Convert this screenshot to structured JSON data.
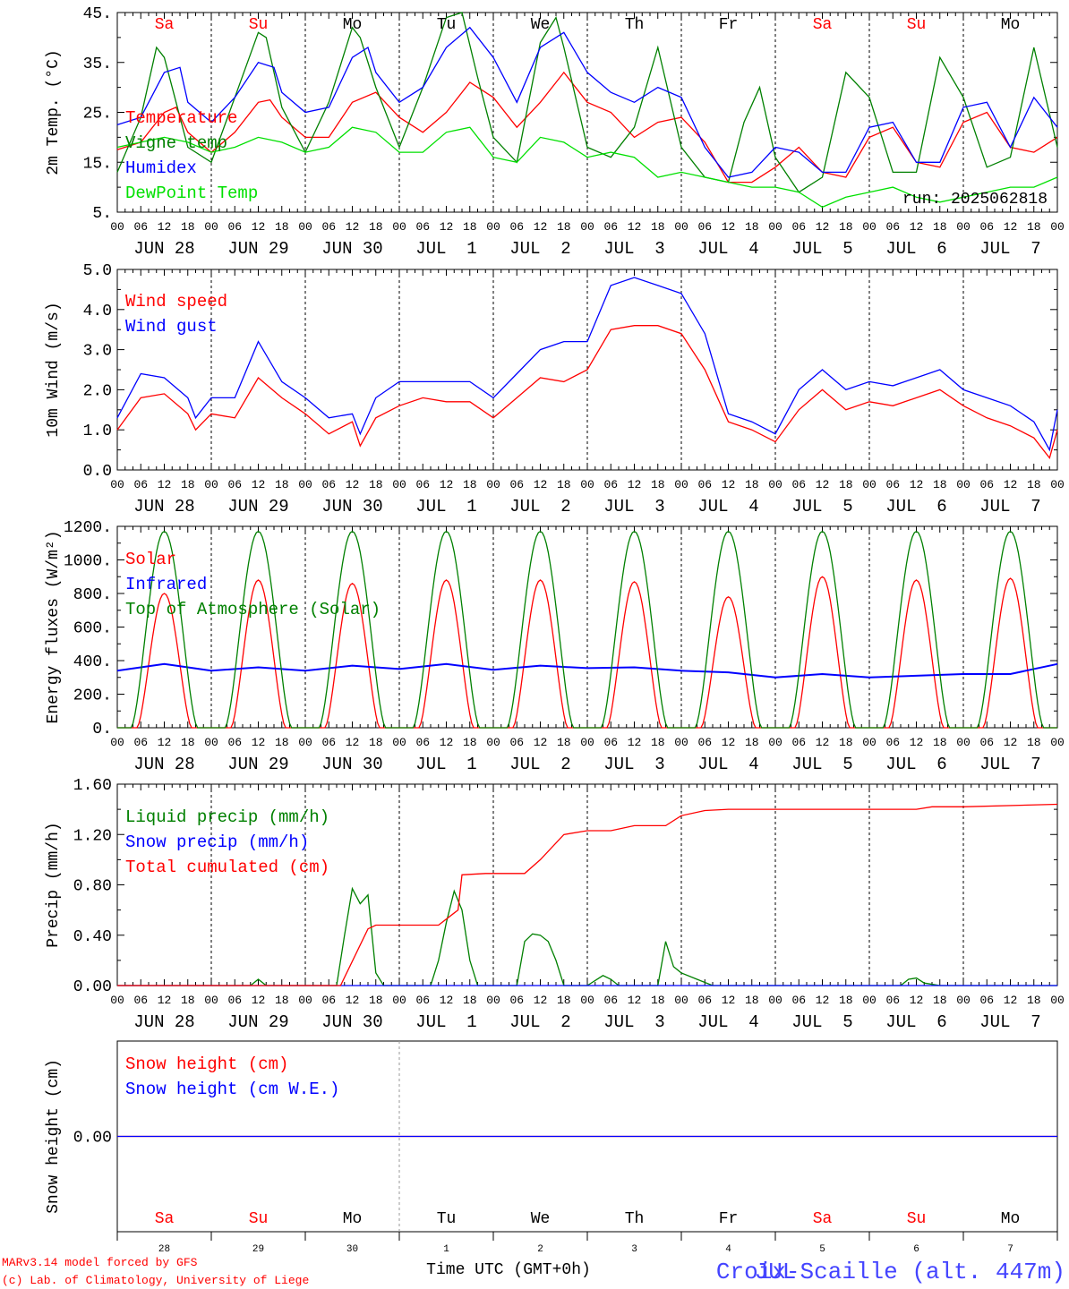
{
  "run_label": "run: 2025062818",
  "footer": {
    "model_line": "MARv3.14 model forced by GFS",
    "credit_line": "(c) Lab. of Climatology, University of Liege",
    "xlabel": "Time UTC (GMT+0h)",
    "month_label": "JUL",
    "station": "Croix-Scaille (alt. 447m)"
  },
  "days": [
    {
      "abbr": "Sa",
      "weekend": true,
      "label": "JUN 28",
      "num": "28"
    },
    {
      "abbr": "Su",
      "weekend": true,
      "label": "JUN 29",
      "num": "29"
    },
    {
      "abbr": "Mo",
      "weekend": false,
      "label": "JUN 30",
      "num": "30"
    },
    {
      "abbr": "Tu",
      "weekend": false,
      "label": "JUL  1",
      "num": "1"
    },
    {
      "abbr": "We",
      "weekend": false,
      "label": "JUL  2",
      "num": "2"
    },
    {
      "abbr": "Th",
      "weekend": false,
      "label": "JUL  3",
      "num": "3"
    },
    {
      "abbr": "Fr",
      "weekend": false,
      "label": "JUL  4",
      "num": "4"
    },
    {
      "abbr": "Sa",
      "weekend": true,
      "label": "JUL  5",
      "num": "5"
    },
    {
      "abbr": "Su",
      "weekend": true,
      "label": "JUL  6",
      "num": "6"
    },
    {
      "abbr": "Mo",
      "weekend": false,
      "label": "JUL  7",
      "num": "7"
    }
  ],
  "hour_ticks": [
    "00",
    "06",
    "12",
    "18"
  ],
  "colors": {
    "red": "#ff0000",
    "blue": "#0000ff",
    "green": "#008000",
    "lightgreen": "#00e000",
    "weekend": "#ff0000",
    "weekday": "#000000",
    "station": "#4444ff"
  },
  "chart_data": [
    {
      "id": "temp",
      "type": "line",
      "ylabel": "2m Temp. (°C)",
      "ylim": [
        5,
        45
      ],
      "yticks": [
        "5.",
        "15.",
        "25.",
        "35.",
        "45."
      ],
      "ytick_values": [
        5,
        15,
        25,
        35,
        45
      ],
      "x_unit": "hours since JUN 28 00 UTC",
      "series": [
        {
          "name": "Temperature",
          "color": "red",
          "x": [
            0,
            6,
            12,
            15,
            18,
            24,
            30,
            36,
            39,
            42,
            48,
            54,
            60,
            66,
            72,
            78,
            84,
            90,
            96,
            102,
            108,
            114,
            120,
            126,
            132,
            138,
            144,
            150,
            156,
            162,
            168,
            174,
            180,
            186,
            192,
            198,
            204,
            210,
            216,
            222,
            228,
            234,
            240
          ],
          "y": [
            17.5,
            19,
            25,
            26,
            21,
            17,
            21,
            27,
            27.5,
            24,
            20,
            20,
            27,
            29,
            24,
            21,
            25,
            31,
            28,
            22,
            27,
            33,
            27,
            25,
            20,
            23,
            24,
            19,
            11,
            11,
            14,
            18,
            13,
            12,
            20,
            22,
            15,
            14,
            23,
            25,
            18,
            17,
            20
          ]
        },
        {
          "name": "Vigne temp",
          "color": "green",
          "x": [
            0,
            6,
            10,
            12,
            14,
            18,
            24,
            30,
            36,
            38,
            42,
            48,
            54,
            60,
            62,
            66,
            72,
            78,
            84,
            88,
            92,
            96,
            102,
            108,
            112,
            114,
            120,
            126,
            132,
            138,
            144,
            150,
            156,
            160,
            164,
            168,
            174,
            180,
            186,
            192,
            198,
            204,
            210,
            216,
            222,
            228,
            234,
            240
          ],
          "y": [
            13,
            24,
            38,
            36,
            30,
            18,
            15,
            28,
            41,
            40,
            26,
            17,
            27,
            42,
            40,
            30,
            18,
            30,
            44,
            45,
            32,
            20,
            15,
            39,
            44,
            38,
            18,
            16,
            22,
            38,
            18,
            12,
            11,
            23,
            30,
            16,
            9,
            12,
            33,
            28,
            13,
            13,
            36,
            28,
            14,
            16,
            38,
            18
          ]
        },
        {
          "name": "Humidex",
          "color": "blue",
          "x": [
            0,
            6,
            12,
            16,
            18,
            24,
            30,
            36,
            40,
            42,
            48,
            54,
            60,
            64,
            66,
            72,
            78,
            84,
            90,
            96,
            102,
            108,
            114,
            120,
            126,
            132,
            138,
            144,
            150,
            156,
            162,
            168,
            174,
            180,
            186,
            192,
            198,
            204,
            210,
            216,
            222,
            228,
            234,
            240
          ],
          "y": [
            22.5,
            24,
            33,
            34,
            27,
            23,
            28,
            35,
            34,
            29,
            25,
            26,
            36,
            38,
            33,
            27,
            30,
            38,
            42,
            36,
            27,
            38,
            41,
            33,
            29,
            27,
            30,
            28,
            18,
            12,
            13,
            18,
            17,
            13,
            13,
            22,
            23,
            15,
            15,
            26,
            27,
            18,
            28,
            22
          ]
        },
        {
          "name": "DewPoint Temp",
          "color": "lightgreen",
          "x": [
            0,
            6,
            12,
            18,
            24,
            30,
            36,
            42,
            48,
            54,
            60,
            66,
            72,
            78,
            84,
            90,
            96,
            102,
            108,
            114,
            120,
            126,
            132,
            138,
            144,
            150,
            156,
            162,
            168,
            174,
            180,
            186,
            192,
            198,
            204,
            210,
            216,
            222,
            228,
            234,
            240
          ],
          "y": [
            18,
            19,
            20,
            19,
            17,
            18,
            20,
            19,
            17,
            18,
            22,
            21,
            17,
            17,
            21,
            22,
            16,
            15,
            20,
            19,
            16,
            17,
            16,
            12,
            13,
            12,
            11,
            10,
            10,
            9,
            6,
            8,
            9,
            10,
            8,
            7,
            8,
            9,
            10,
            10,
            12
          ]
        }
      ]
    },
    {
      "id": "wind",
      "type": "line",
      "ylabel": "10m Wind (m/s)",
      "ylim": [
        0,
        5
      ],
      "yticks": [
        "0.0",
        "1.0",
        "2.0",
        "3.0",
        "4.0",
        "5.0"
      ],
      "ytick_values": [
        0,
        1,
        2,
        3,
        4,
        5
      ],
      "x_unit": "hours since JUN 28 00 UTC",
      "series": [
        {
          "name": "Wind speed",
          "color": "red",
          "x": [
            0,
            6,
            12,
            18,
            20,
            24,
            30,
            36,
            42,
            48,
            54,
            60,
            62,
            66,
            72,
            78,
            84,
            90,
            96,
            102,
            108,
            114,
            120,
            126,
            132,
            138,
            144,
            150,
            156,
            162,
            168,
            174,
            180,
            186,
            192,
            198,
            204,
            210,
            216,
            222,
            228,
            234,
            238,
            240
          ],
          "y": [
            1.0,
            1.8,
            1.9,
            1.4,
            1.0,
            1.4,
            1.3,
            2.3,
            1.8,
            1.4,
            0.9,
            1.2,
            0.6,
            1.3,
            1.6,
            1.8,
            1.7,
            1.7,
            1.3,
            1.8,
            2.3,
            2.2,
            2.5,
            3.5,
            3.6,
            3.6,
            3.4,
            2.5,
            1.2,
            1.0,
            0.7,
            1.5,
            2.0,
            1.5,
            1.7,
            1.6,
            1.8,
            2.0,
            1.6,
            1.3,
            1.1,
            0.8,
            0.3,
            1.0
          ]
        },
        {
          "name": "Wind gust",
          "color": "blue",
          "x": [
            0,
            6,
            12,
            18,
            20,
            24,
            30,
            36,
            42,
            48,
            54,
            60,
            62,
            66,
            72,
            78,
            84,
            90,
            96,
            102,
            108,
            114,
            120,
            126,
            132,
            138,
            144,
            150,
            156,
            162,
            168,
            174,
            180,
            186,
            192,
            198,
            204,
            210,
            216,
            222,
            228,
            234,
            238,
            240
          ],
          "y": [
            1.3,
            2.4,
            2.3,
            1.8,
            1.3,
            1.8,
            1.8,
            3.2,
            2.2,
            1.8,
            1.3,
            1.4,
            0.9,
            1.8,
            2.2,
            2.2,
            2.2,
            2.2,
            1.8,
            2.4,
            3.0,
            3.2,
            3.2,
            4.6,
            4.8,
            4.6,
            4.4,
            3.4,
            1.4,
            1.2,
            0.9,
            2.0,
            2.5,
            2.0,
            2.2,
            2.1,
            2.3,
            2.5,
            2.0,
            1.8,
            1.6,
            1.2,
            0.5,
            1.5
          ]
        }
      ]
    },
    {
      "id": "energy",
      "type": "line",
      "ylabel": "Energy fluxes (W/m²)",
      "ylim": [
        0,
        1200
      ],
      "yticks": [
        "0.",
        "200.",
        "400.",
        "600.",
        "800.",
        "1000.",
        "1200."
      ],
      "ytick_values": [
        0,
        200,
        400,
        600,
        800,
        1000,
        1200
      ],
      "x_unit": "hours since JUN 28 00 UTC",
      "series": [
        {
          "name": "Solar",
          "color": "red",
          "daily_peak": [
            800,
            880,
            860,
            880,
            880,
            870,
            780,
            900,
            880,
            890
          ]
        },
        {
          "name": "Infrared",
          "color": "blue",
          "x": [
            0,
            12,
            18,
            24,
            36,
            48,
            60,
            72,
            84,
            96,
            108,
            120,
            132,
            144,
            156,
            168,
            180,
            192,
            204,
            216,
            228,
            240
          ],
          "y": [
            340,
            380,
            360,
            340,
            360,
            340,
            370,
            350,
            380,
            345,
            370,
            355,
            360,
            340,
            330,
            300,
            320,
            300,
            310,
            320,
            320,
            380
          ]
        },
        {
          "name": "Top of Atmosphere (Solar)",
          "color": "green",
          "daily_peak": [
            1170,
            1170,
            1170,
            1170,
            1170,
            1170,
            1170,
            1170,
            1170,
            1170
          ]
        }
      ]
    },
    {
      "id": "precip",
      "type": "line",
      "ylabel": "Precip (mm/h)",
      "ylim": [
        0,
        1.6
      ],
      "yticks": [
        "0.00",
        "0.40",
        "0.80",
        "1.20",
        "1.60"
      ],
      "ytick_values": [
        0,
        0.4,
        0.8,
        1.2,
        1.6
      ],
      "x_unit": "hours since JUN 28 00 UTC",
      "series": [
        {
          "name": "Liquid precip (mm/h)",
          "color": "green",
          "x": [
            0,
            34,
            36,
            38,
            48,
            56,
            58,
            60,
            62,
            64,
            66,
            68,
            72,
            80,
            82,
            84,
            86,
            88,
            90,
            92,
            96,
            102,
            104,
            106,
            108,
            110,
            112,
            114,
            116,
            120,
            124,
            126,
            128,
            132,
            138,
            140,
            142,
            144,
            148,
            152,
            156,
            200,
            202,
            204,
            206,
            210,
            240
          ],
          "y": [
            0,
            0,
            0.05,
            0,
            0,
            0,
            0.4,
            0.77,
            0.65,
            0.72,
            0.1,
            0,
            0,
            0,
            0.2,
            0.5,
            0.75,
            0.6,
            0.2,
            0,
            0,
            0,
            0.35,
            0.41,
            0.4,
            0.35,
            0.2,
            0,
            0,
            0,
            0.08,
            0.05,
            0,
            0,
            0,
            0.35,
            0.15,
            0.1,
            0.05,
            0,
            0,
            0,
            0.05,
            0.06,
            0.02,
            0,
            0
          ]
        },
        {
          "name": "Snow precip (mm/h)",
          "color": "blue",
          "x": [
            0,
            240
          ],
          "y": [
            0,
            0
          ]
        },
        {
          "name": "Total cumulated (cm)",
          "color": "red",
          "x": [
            0,
            34,
            57,
            64,
            66,
            82,
            87,
            88,
            94,
            104,
            108,
            114,
            120,
            126,
            132,
            140,
            144,
            150,
            156,
            204,
            208,
            216,
            240
          ],
          "y": [
            0,
            0,
            0,
            0.45,
            0.48,
            0.48,
            0.6,
            0.88,
            0.89,
            0.89,
            1.0,
            1.2,
            1.23,
            1.23,
            1.27,
            1.27,
            1.35,
            1.39,
            1.4,
            1.4,
            1.42,
            1.42,
            1.44
          ]
        }
      ]
    },
    {
      "id": "snow",
      "type": "line",
      "ylabel": "Snow height (cm)",
      "ylim": [
        -1,
        1
      ],
      "yticks": [
        "0.00"
      ],
      "ytick_values": [
        0
      ],
      "x_unit": "hours since JUN 28 00 UTC",
      "series": [
        {
          "name": "Snow height (cm)",
          "color": "red",
          "x": [
            0,
            240
          ],
          "y": [
            0,
            0
          ]
        },
        {
          "name": "Snow height (cm W.E.)",
          "color": "blue",
          "x": [
            0,
            240
          ],
          "y": [
            0,
            0
          ]
        }
      ]
    }
  ]
}
